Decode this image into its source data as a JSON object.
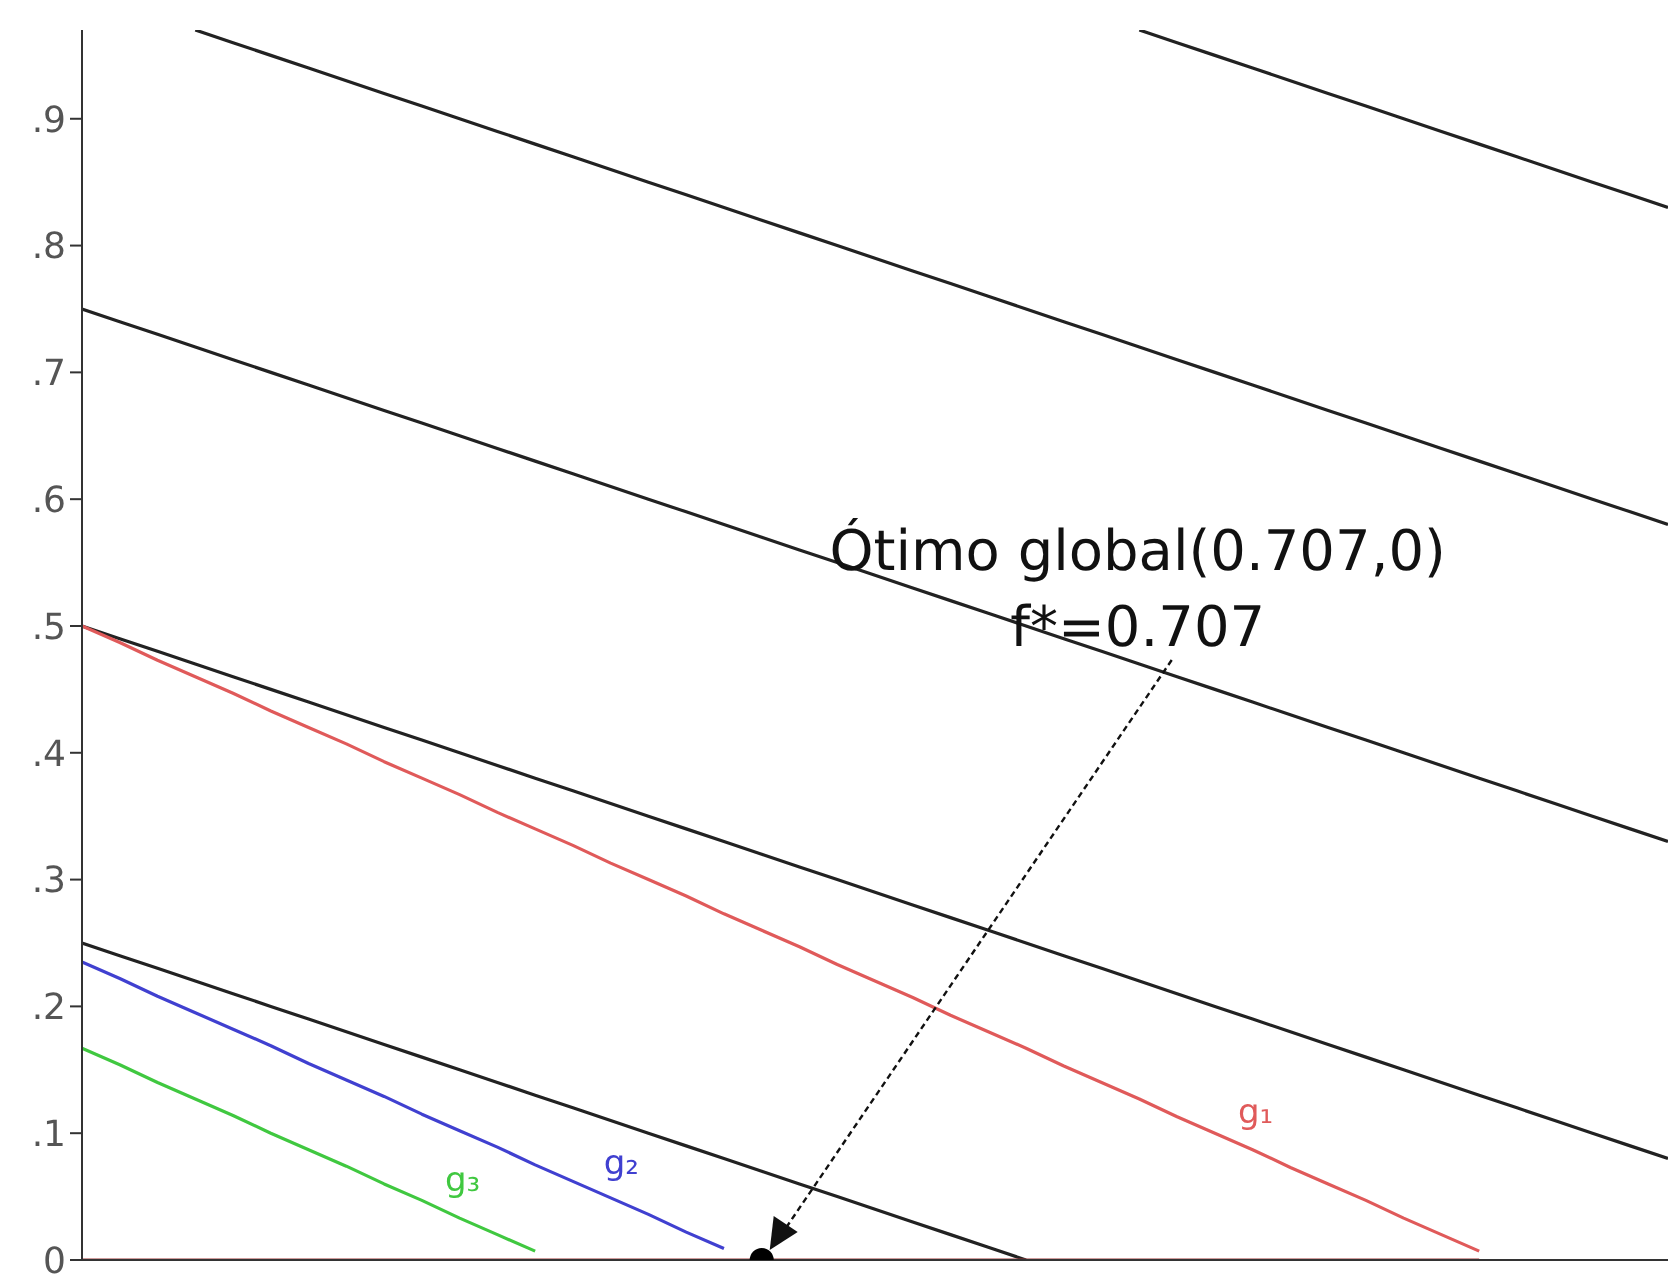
{
  "chart_data": {
    "type": "line",
    "categories": [
      null,
      null,
      null,
      null,
      null,
      null,
      null,
      null,
      null,
      null,
      null,
      null,
      null,
      null,
      null,
      null,
      null,
      null,
      null,
      null,
      null,
      null,
      null,
      null,
      null,
      null,
      null,
      null,
      null,
      null,
      null,
      null,
      null,
      null,
      null,
      null,
      null,
      null,
      null,
      null,
      null,
      null,
      null
    ],
    "ylim": [
      0,
      0.97
    ],
    "yticks": [
      0,
      {
        "value": 0.1,
        "label": ".1"
      },
      {
        "value": 0.2,
        "label": ".2"
      },
      {
        "value": 0.3,
        "label": ".3"
      },
      {
        "value": 0.4,
        "label": ".4"
      },
      {
        "value": 0.5,
        "label": ".5"
      },
      {
        "value": 0.6,
        "label": ".6"
      },
      {
        "value": 0.7,
        "label": ".7"
      },
      {
        "value": 0.8,
        "label": ".8"
      },
      {
        "value": 0.9,
        "label": ".9"
      }
    ],
    "grid": false,
    "legend": false,
    "marker": "none",
    "line_style": "solid",
    "series": [
      {
        "color": "#222222",
        "values": [
          0.25,
          0.24,
          0.23,
          0.22,
          0.21,
          0.2,
          0.19,
          0.18,
          0.17,
          0.16,
          0.15,
          0.14,
          0.13,
          0.12,
          0.11,
          0.1,
          0.09,
          0.08,
          0.07,
          0.06,
          0.05,
          0.04,
          0.03,
          0.02,
          0.01,
          0,
          null,
          null,
          null,
          null,
          null,
          null,
          null,
          null,
          null,
          null,
          null,
          null,
          null,
          null,
          null,
          null,
          null
        ]
      },
      {
        "color": "#222222",
        "values": [
          0.5,
          0.49,
          0.48,
          0.47,
          0.46,
          0.45,
          0.44,
          0.43,
          0.42,
          0.41,
          0.4,
          0.39,
          0.38,
          0.37,
          0.36,
          0.35,
          0.34,
          0.33,
          0.32,
          0.31,
          0.3,
          0.29,
          0.28,
          0.27,
          0.26,
          0.25,
          0.24,
          0.23,
          0.22,
          0.21,
          0.2,
          0.19,
          0.18,
          0.17,
          0.16,
          0.15,
          0.14,
          0.13,
          0.12,
          0.11,
          0.1,
          0.09,
          0.08
        ]
      },
      {
        "color": "#222222",
        "values": [
          0.75,
          0.74,
          0.73,
          0.72,
          0.71,
          0.7,
          0.69,
          0.68,
          0.67,
          0.66,
          0.65,
          0.64,
          0.63,
          0.62,
          0.61,
          0.6,
          0.59,
          0.58,
          0.57,
          0.56,
          0.55,
          0.54,
          0.53,
          0.52,
          0.51,
          0.5,
          0.49,
          0.48,
          0.47,
          0.46,
          0.45,
          0.44,
          0.43,
          0.42,
          0.41,
          0.4,
          0.39,
          0.38,
          0.37,
          0.36,
          0.35,
          0.34,
          0.33
        ]
      },
      {
        "color": "#222222",
        "values": [
          null,
          null,
          null,
          0.97,
          0.96,
          0.95,
          0.94,
          0.93,
          0.92,
          0.91,
          0.9,
          0.89,
          0.88,
          0.87,
          0.86,
          0.85,
          0.84,
          0.83,
          0.82,
          0.81,
          0.8,
          0.79,
          0.78,
          0.77,
          0.76,
          0.75,
          0.74,
          0.73,
          0.72,
          0.71,
          0.7,
          0.69,
          0.68,
          0.67,
          0.66,
          0.65,
          0.64,
          0.63,
          0.62,
          0.61,
          0.6,
          0.59,
          0.58
        ]
      },
      {
        "color": "#222222",
        "values": [
          null,
          null,
          null,
          null,
          null,
          null,
          null,
          null,
          null,
          null,
          null,
          null,
          null,
          null,
          null,
          null,
          null,
          null,
          null,
          null,
          null,
          null,
          null,
          null,
          null,
          null,
          null,
          null,
          0.97,
          0.96,
          0.95,
          0.94,
          0.93,
          0.92,
          0.91,
          0.9,
          0.89,
          0.88,
          0.87,
          0.86,
          0.85,
          0.84,
          0.83
        ]
      },
      {
        "color": "#a03838",
        "values": [
          0,
          0,
          0,
          0,
          0,
          0,
          0,
          0,
          0,
          0,
          0,
          0,
          0,
          0,
          0,
          0,
          0,
          0,
          0,
          0,
          0,
          0,
          0,
          0,
          0,
          0,
          0,
          0,
          0,
          0,
          0,
          0,
          0,
          0,
          0,
          0,
          0,
          0,
          null,
          null,
          null,
          null,
          null
        ]
      },
      {
        "name": "g₁",
        "color": "#e05a5a",
        "values": [
          0.5,
          0.487,
          0.473,
          0.46,
          0.447,
          0.433,
          0.42,
          0.407,
          0.393,
          0.38,
          0.367,
          0.353,
          0.34,
          0.327,
          0.313,
          0.3,
          0.287,
          0.273,
          0.26,
          0.247,
          0.233,
          0.22,
          0.207,
          0.193,
          0.18,
          0.167,
          0.153,
          0.14,
          0.127,
          0.113,
          0.1,
          0.087,
          0.073,
          0.06,
          0.047,
          0.033,
          0.02,
          0.007,
          null,
          null,
          null,
          null,
          null
        ]
      },
      {
        "name": "g₂",
        "color": "#4040d0",
        "values": [
          0.235,
          0.222,
          0.208,
          0.195,
          0.182,
          0.169,
          0.155,
          0.142,
          0.129,
          0.115,
          0.102,
          0.089,
          0.075,
          0.062,
          0.049,
          0.036,
          0.022,
          0.009,
          null,
          null,
          null,
          null,
          null,
          null,
          null,
          null,
          null,
          null,
          null,
          null,
          null,
          null,
          null,
          null,
          null,
          null,
          null,
          null,
          null,
          null,
          null,
          null,
          null
        ]
      },
      {
        "name": "g₃",
        "color": "#40c840",
        "values": [
          0.167,
          0.154,
          0.14,
          0.127,
          0.114,
          0.1,
          0.087,
          0.074,
          0.06,
          0.047,
          0.033,
          0.02,
          0.007,
          null,
          null,
          null,
          null,
          null,
          null,
          null,
          null,
          null,
          null,
          null,
          null,
          null,
          null,
          null,
          null,
          null,
          null,
          null,
          null,
          null,
          null,
          null,
          null,
          null,
          null,
          null,
          null,
          null,
          null
        ]
      },
      {
        "type": "scatter",
        "marker": "circle",
        "color": "#000000",
        "values": [
          null,
          null,
          null,
          null,
          null,
          null,
          null,
          null,
          null,
          null,
          null,
          null,
          null,
          null,
          null,
          null,
          null,
          null,
          0,
          null,
          null,
          null,
          null,
          null,
          null,
          null,
          null,
          null,
          null,
          null,
          null,
          null,
          null,
          null,
          null,
          null,
          null,
          null,
          null,
          null,
          null,
          null,
          null
        ]
      }
    ],
    "annotations": [
      "Ótimo global(0.707,0)\nf*=0.707"
    ]
  }
}
